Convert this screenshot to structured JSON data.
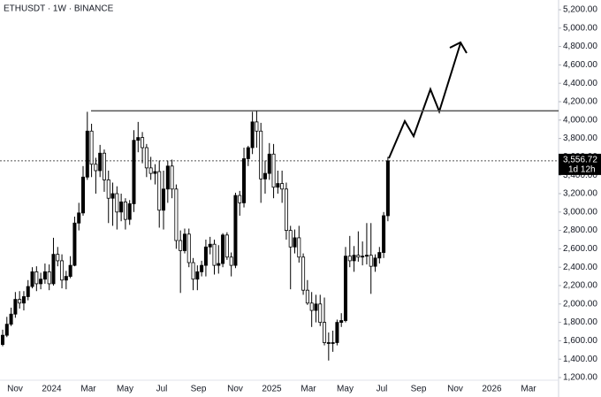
{
  "chart_data": {
    "type": "candlestick",
    "title": "ETHUSDT · 1W · BINANCE",
    "x_labels": [
      "Nov",
      "2024",
      "Mar",
      "May",
      "Jul",
      "Sep",
      "Nov",
      "2025",
      "Mar",
      "May",
      "Jul",
      "Sep",
      "Nov",
      "2026",
      "Mar"
    ],
    "open": [
      1560,
      1660,
      1780,
      1890,
      2050,
      2010,
      2080,
      2190,
      2350,
      2220,
      2270,
      2350,
      2220,
      2540,
      2470,
      2260,
      2300,
      2420,
      2880,
      2990,
      3380,
      3880,
      3520,
      3450,
      3640,
      3350,
      3150,
      3200,
      3000,
      3110,
      2920,
      3090,
      3780,
      3810,
      3700,
      3480,
      3420,
      3440,
      3020,
      3250,
      3500,
      3250,
      2690,
      2580,
      2760,
      2450,
      2270,
      2350,
      2420,
      2620,
      2650,
      2420,
      2440,
      2750,
      2510,
      2420,
      3180,
      3100,
      3580,
      3700,
      3980,
      3880,
      3360,
      3420,
      3630,
      3270,
      3310,
      3250,
      2800,
      2620,
      2720,
      2510,
      2150,
      2010,
      1930,
      2000,
      1800,
      1580,
      1580,
      1580,
      1800,
      1820,
      2520,
      2470,
      2530,
      2510,
      2520,
      2530,
      2410,
      2500,
      2560,
      2960
    ],
    "high": [
      1720,
      1860,
      1960,
      2130,
      2140,
      2140,
      2260,
      2400,
      2410,
      2340,
      2440,
      2430,
      2720,
      2620,
      2540,
      2360,
      2520,
      2950,
      3100,
      3500,
      4090,
      3960,
      3590,
      3730,
      3680,
      3450,
      3320,
      3280,
      3200,
      3150,
      3130,
      3890,
      3980,
      3870,
      3740,
      3600,
      3520,
      3560,
      3450,
      3560,
      3570,
      3300,
      2800,
      2820,
      2820,
      2500,
      2420,
      2470,
      2700,
      2730,
      2700,
      2640,
      2770,
      2780,
      2560,
      3210,
      3230,
      3700,
      3720,
      4090,
      4100,
      3970,
      3560,
      3750,
      3740,
      3450,
      3450,
      3320,
      2850,
      2810,
      2850,
      2550,
      2260,
      2130,
      2100,
      2100,
      2070,
      1690,
      1710,
      1830,
      1900,
      2620,
      2740,
      2630,
      2790,
      2680,
      2880,
      2880,
      2540,
      2620,
      3000,
      3600
    ],
    "low": [
      1540,
      1640,
      1760,
      1850,
      1950,
      1930,
      2040,
      2170,
      2140,
      2160,
      2220,
      2150,
      2200,
      2410,
      2170,
      2160,
      2280,
      2410,
      2800,
      2960,
      3350,
      3380,
      3200,
      3380,
      3220,
      2880,
      2850,
      2810,
      2900,
      2810,
      2860,
      3000,
      3650,
      3530,
      3380,
      3350,
      3300,
      2830,
      2810,
      3100,
      3150,
      2600,
      2120,
      2550,
      2400,
      2150,
      2150,
      2300,
      2300,
      2540,
      2320,
      2330,
      2400,
      2480,
      2300,
      2390,
      2960,
      3050,
      3500,
      3630,
      3700,
      3100,
      3200,
      3350,
      3150,
      3200,
      3100,
      2700,
      2160,
      2550,
      2450,
      2100,
      1990,
      1750,
      1800,
      1760,
      1550,
      1385,
      1480,
      1550,
      1750,
      1800,
      2400,
      2350,
      2460,
      2420,
      2430,
      2110,
      2350,
      2440,
      2500,
      2900
    ],
    "close": [
      1660,
      1780,
      1890,
      2050,
      2010,
      2080,
      2190,
      2350,
      2220,
      2270,
      2350,
      2220,
      2540,
      2470,
      2260,
      2300,
      2420,
      2880,
      2990,
      3380,
      3880,
      3520,
      3450,
      3640,
      3350,
      3150,
      3200,
      3000,
      3110,
      2920,
      3090,
      3780,
      3810,
      3700,
      3480,
      3420,
      3440,
      3020,
      3250,
      3500,
      3250,
      2690,
      2580,
      2760,
      2450,
      2270,
      2350,
      2420,
      2620,
      2650,
      2420,
      2440,
      2750,
      2510,
      2420,
      3180,
      3100,
      3580,
      3700,
      3980,
      3880,
      3360,
      3420,
      3630,
      3270,
      3310,
      3250,
      2800,
      2620,
      2720,
      2510,
      2150,
      2010,
      1930,
      2000,
      1800,
      1580,
      1580,
      1580,
      1800,
      1820,
      2520,
      2470,
      2530,
      2510,
      2520,
      2530,
      2410,
      2500,
      2560,
      2960,
      3556.72
    ],
    "up_color": "#000000",
    "down_color": "#ffffff",
    "ylim": [
      1200,
      5200
    ],
    "yticks": [
      {
        "value": 1200,
        "label": "1,200.00"
      },
      {
        "value": 1400,
        "label": "1,400.00"
      },
      {
        "value": 1600,
        "label": "1,600.00"
      },
      {
        "value": 1800,
        "label": "1,800.00"
      },
      {
        "value": 2000,
        "label": "2,000.00"
      },
      {
        "value": 2200,
        "label": "2,200.00"
      },
      {
        "value": 2400,
        "label": "2,400.00"
      },
      {
        "value": 2600,
        "label": "2,600.00"
      },
      {
        "value": 2800,
        "label": "2,800.00"
      },
      {
        "value": 3000,
        "label": "3,000.00"
      },
      {
        "value": 3200,
        "label": "3,200.00"
      },
      {
        "value": 3400,
        "label": "3,400.00"
      },
      {
        "value": 3600,
        "label": "3,600.00"
      },
      {
        "value": 3800,
        "label": "3,800.00"
      },
      {
        "value": 4000,
        "label": "4,000.00"
      },
      {
        "value": 4200,
        "label": "4,200.00"
      },
      {
        "value": 4400,
        "label": "4,400.00"
      },
      {
        "value": 4600,
        "label": "4,600.00"
      },
      {
        "value": 4800,
        "label": "4,800.00"
      },
      {
        "value": 5000,
        "label": "5,000.00"
      },
      {
        "value": 5200,
        "label": "5,200.00"
      }
    ],
    "resistance": 4100,
    "last_price": {
      "value": 3556.72,
      "label": "3,556.72",
      "countdown": "1d 12h"
    },
    "grid": false
  }
}
